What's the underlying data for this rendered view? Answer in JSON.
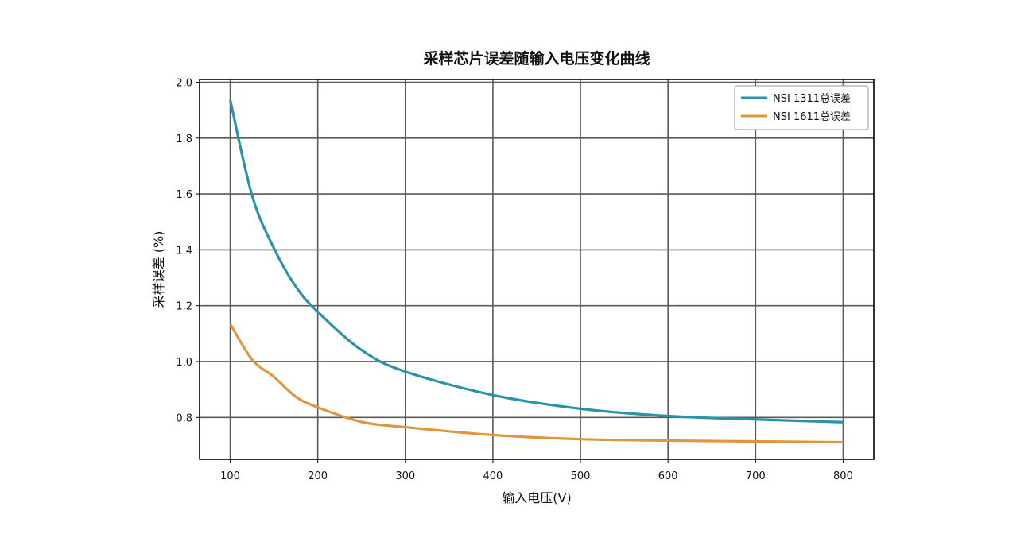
{
  "chart_data": {
    "type": "line",
    "title": "采样芯片误差随输入电压变化曲线",
    "xlabel": "输入电压(V)",
    "ylabel": "采样误差 (%)",
    "xlim": [
      65,
      835
    ],
    "ylim": [
      0.65,
      2.01
    ],
    "xticks": [
      100,
      200,
      300,
      400,
      500,
      600,
      700,
      800
    ],
    "yticks": [
      0.8,
      1.0,
      1.2,
      1.4,
      1.6,
      1.8,
      2.0
    ],
    "grid": true,
    "legend_position": "top-right",
    "series": [
      {
        "name": "NSI 1311总误差",
        "color": "#2a93a8",
        "x": [
          100,
          125,
          150,
          175,
          200,
          250,
          300,
          400,
          500,
          600,
          700,
          800
        ],
        "y": [
          1.936,
          1.594,
          1.405,
          1.268,
          1.178,
          1.041,
          0.964,
          0.88,
          0.831,
          0.805,
          0.793,
          0.783
        ]
      },
      {
        "name": "NSI 1611总误差",
        "color": "#e0963f",
        "x": [
          100,
          125,
          150,
          175,
          200,
          250,
          300,
          400,
          500,
          600,
          700,
          800
        ],
        "y": [
          1.135,
          1.007,
          0.945,
          0.874,
          0.836,
          0.784,
          0.765,
          0.737,
          0.722,
          0.717,
          0.714,
          0.711
        ]
      }
    ]
  }
}
